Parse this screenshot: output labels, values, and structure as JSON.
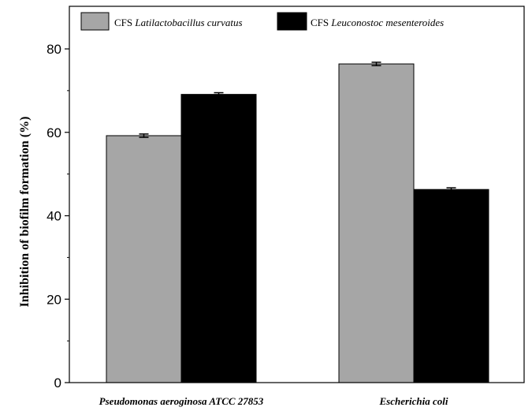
{
  "chart_data": {
    "type": "bar",
    "categories": [
      "Pseudomonas aeroginosa ATCC 27853",
      "Escherichia coli"
    ],
    "series": [
      {
        "name": "CFS Latilactobacillus curvatus",
        "name_prefix": "CFS",
        "name_species": "Latilactobacillus curvatus",
        "values": [
          59.2,
          76.4
        ],
        "errors": [
          0.4,
          0.4
        ],
        "color": "#a6a6a6"
      },
      {
        "name": "CFS Leuconostoc mesenteroides",
        "name_prefix": "CFS",
        "name_species": "Leuconostoc mesenteroides",
        "values": [
          69.1,
          46.3
        ],
        "errors": [
          0.4,
          0.4
        ],
        "color": "#000000"
      }
    ],
    "title": "",
    "xlabel": "",
    "ylabel": "Inhibition of biofilm formation (%)",
    "ylim": [
      0,
      80
    ],
    "yticks": [
      0,
      20,
      40,
      60,
      80
    ],
    "grid": false,
    "legend": "top"
  }
}
